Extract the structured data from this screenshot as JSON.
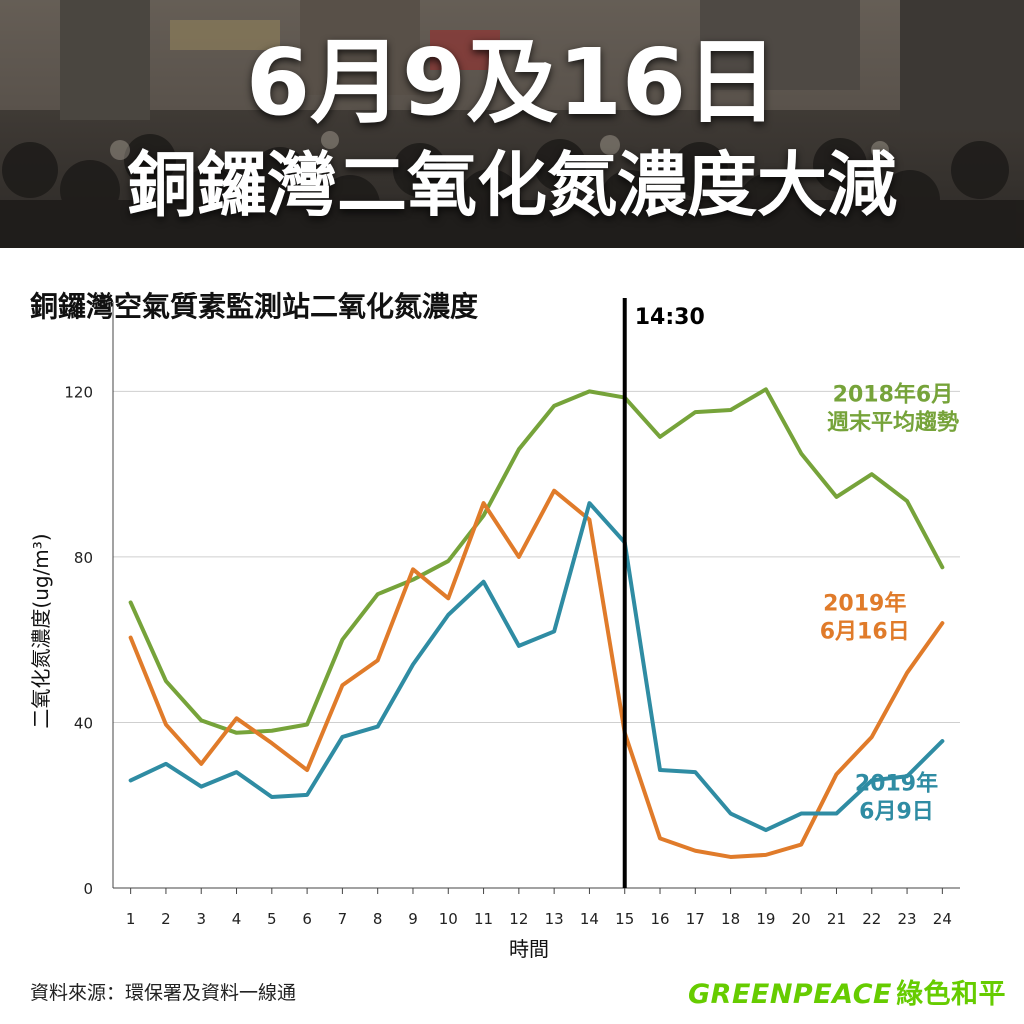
{
  "header": {
    "title_line1": "6月9及16日",
    "title_line2": "銅鑼灣二氧化氮濃度大減"
  },
  "chart_data": {
    "type": "line",
    "title": "銅鑼灣空氣質素監測站二氧化氮濃度",
    "xlabel": "時間",
    "ylabel": "二氧化氮濃度(ug/m³)",
    "x": [
      1,
      2,
      3,
      4,
      5,
      6,
      7,
      8,
      9,
      10,
      11,
      12,
      13,
      14,
      15,
      16,
      17,
      18,
      19,
      20,
      21,
      22,
      23,
      24
    ],
    "ylim": [
      0,
      130
    ],
    "yticks": [
      0,
      40,
      80,
      120
    ],
    "grid": true,
    "marker": {
      "x": 15,
      "label": "14:30"
    },
    "series": [
      {
        "name": "2018年6月 週末平均趨勢",
        "label_lines": [
          "2018年6月",
          "週末平均趨勢"
        ],
        "color": "#76a33a",
        "values": [
          69,
          50,
          40.5,
          37.5,
          38,
          39.5,
          60,
          71,
          74.5,
          79,
          90,
          106,
          116.5,
          120,
          118.5,
          109,
          115,
          115.5,
          120.5,
          105,
          94.5,
          100,
          93.5,
          77.5
        ]
      },
      {
        "name": "2019年 6月16日",
        "label_lines": [
          "2019年",
          "6月16日"
        ],
        "color": "#e07b2a",
        "values": [
          60.5,
          39.5,
          30,
          41,
          35,
          28.5,
          49,
          55,
          77,
          70,
          93,
          80,
          96,
          89,
          37.5,
          12,
          9,
          7.5,
          8,
          10.5,
          27.5,
          36.5,
          52,
          64
        ]
      },
      {
        "name": "2019年 6月9日",
        "label_lines": [
          "2019年",
          "6月9日"
        ],
        "color": "#2f8ca3",
        "values": [
          26,
          30,
          24.5,
          28,
          22,
          22.5,
          36.5,
          39,
          54,
          66,
          74,
          58.5,
          62,
          93,
          83.5,
          28.5,
          28,
          18,
          14,
          18,
          18,
          26,
          27,
          35.5
        ]
      }
    ]
  },
  "footer": {
    "source": "資料來源：環保署及資料一線通",
    "logo_en": "GREENPEACE",
    "logo_cn": "綠色和平"
  }
}
